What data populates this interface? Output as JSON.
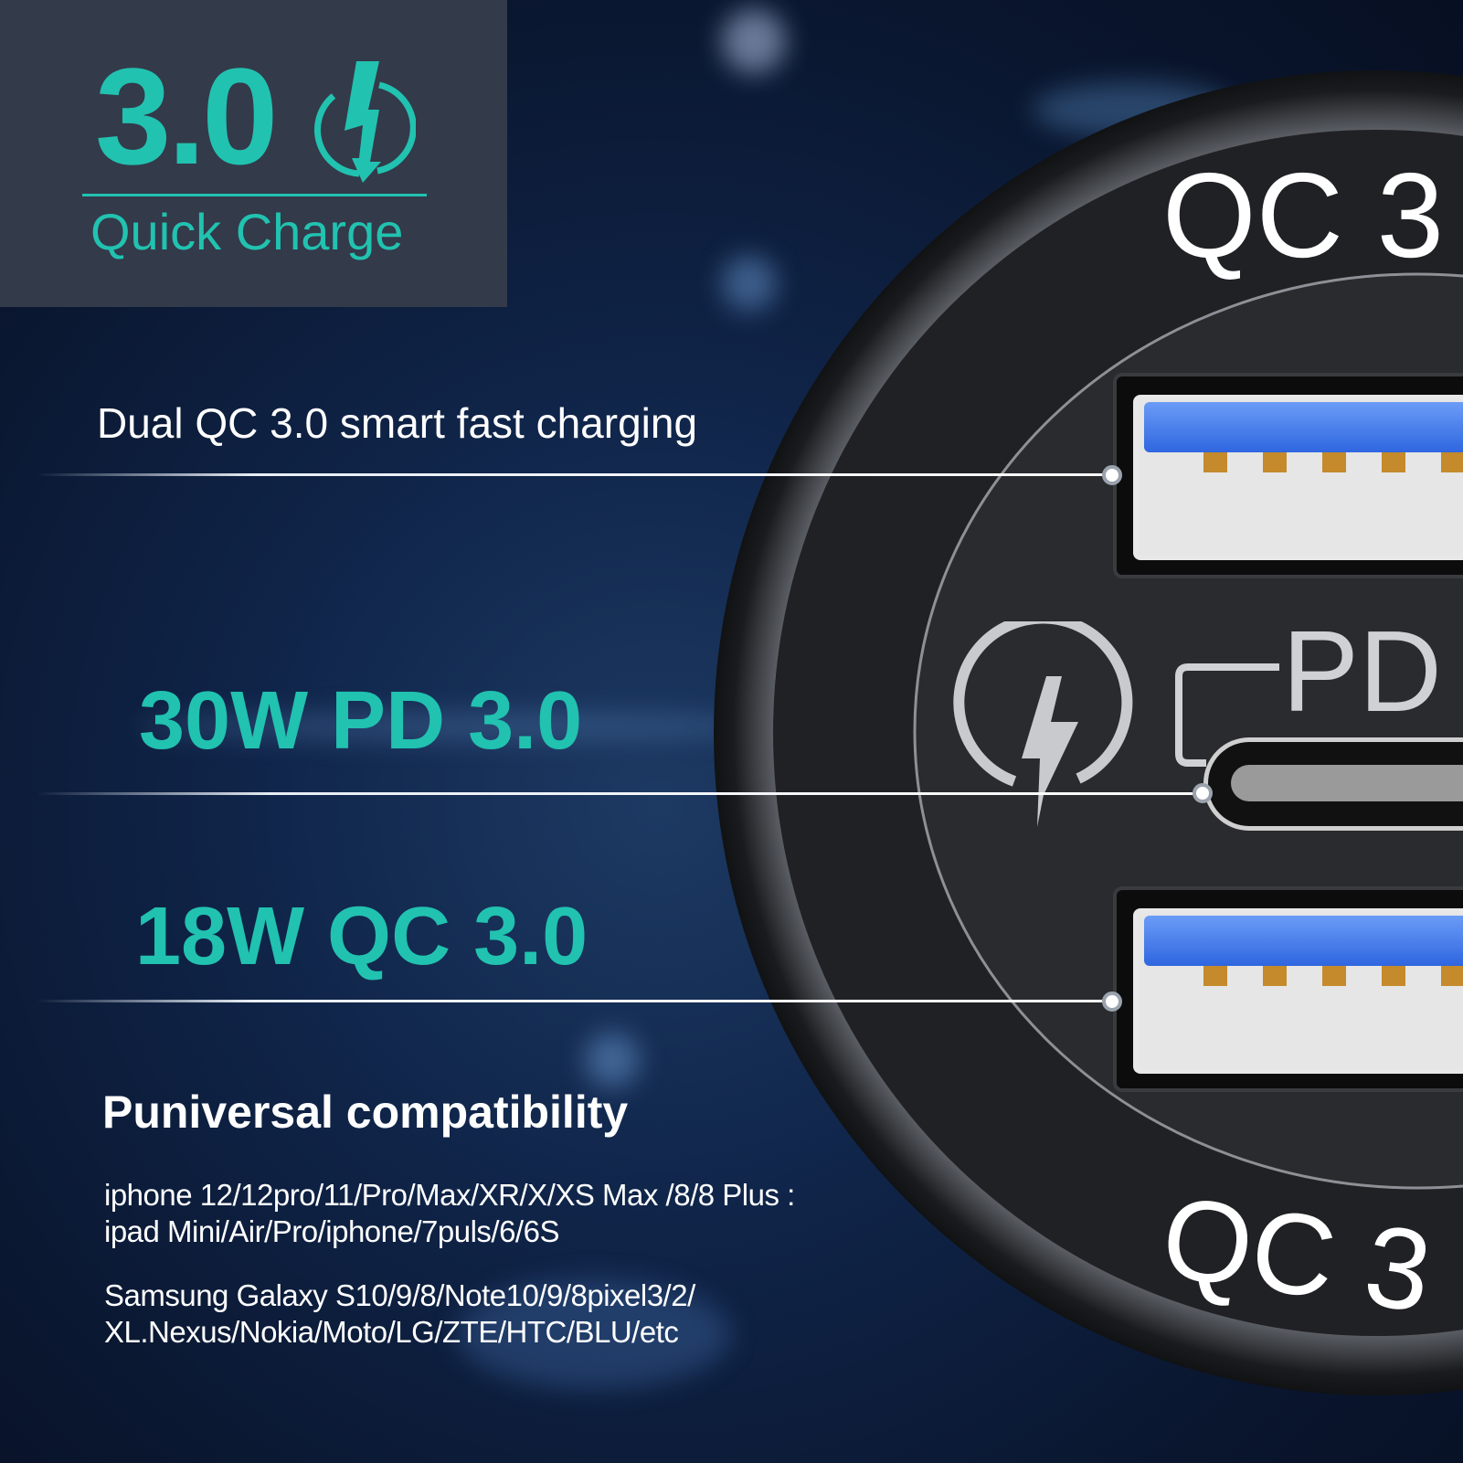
{
  "badge": {
    "version": "3.0",
    "label": "Quick Charge",
    "icon": "lightning-circle-icon",
    "color": "#21c2b0"
  },
  "features": {
    "dual": "Dual QC 3.0 smart fast charging",
    "pd": "30W PD 3.0",
    "qc": "18W QC 3.0"
  },
  "compatibility": {
    "title": "Puniversal compatibility",
    "lines": [
      "iphone 12/12pro/11/Pro/Max/XR/X/XS Max /8/8 Plus :",
      "ipad Mini/Air/Pro/iphone/7puls/6/6S",
      "Samsung Galaxy S10/9/8/Note10/9/8pixel3/2/",
      "XL.Nexus/Nokia/Moto/LG/ZTE/HTC/BLU/etc"
    ]
  },
  "charger": {
    "top_label": "QC 3",
    "bottom_label": "QC 3",
    "pd_label": "PD",
    "icon": "lightning-circle-icon",
    "usb_color": "#3a70e8"
  }
}
